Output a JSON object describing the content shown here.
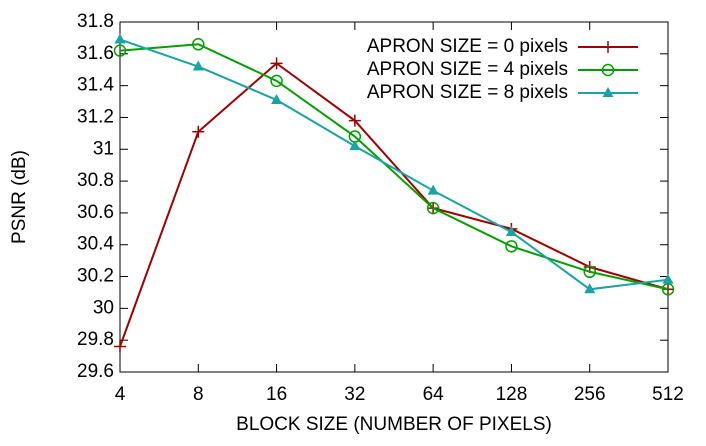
{
  "chart_data": {
    "type": "line",
    "x_label": "BLOCK SIZE (NUMBER OF PIXELS)",
    "y_label": "PSNR (dB)",
    "x": [
      4,
      8,
      16,
      32,
      64,
      128,
      256,
      512
    ],
    "xscale": "log2",
    "xlim": [
      4,
      512
    ],
    "xticks": [
      4,
      8,
      16,
      32,
      64,
      128,
      256,
      512
    ],
    "ylim": [
      29.6,
      31.8
    ],
    "yticks": [
      29.6,
      29.8,
      30,
      30.2,
      30.4,
      30.6,
      30.8,
      31,
      31.2,
      31.4,
      31.6,
      31.8
    ],
    "legend": "top-right",
    "series": [
      {
        "name": "APRON SIZE = 0 pixels",
        "color": "#a00000",
        "marker": "plus",
        "values": [
          29.76,
          31.11,
          31.54,
          31.18,
          30.63,
          30.5,
          30.26,
          30.12
        ]
      },
      {
        "name": "APRON SIZE = 4 pixels",
        "color": "#00a000",
        "marker": "circle",
        "values": [
          31.62,
          31.66,
          31.43,
          31.08,
          30.63,
          30.39,
          30.23,
          30.12
        ]
      },
      {
        "name": "APRON SIZE = 8 pixels",
        "color": "#1aa3a3",
        "marker": "triangle",
        "values": [
          31.69,
          31.52,
          31.31,
          31.02,
          30.74,
          30.48,
          30.12,
          30.18
        ]
      }
    ]
  }
}
